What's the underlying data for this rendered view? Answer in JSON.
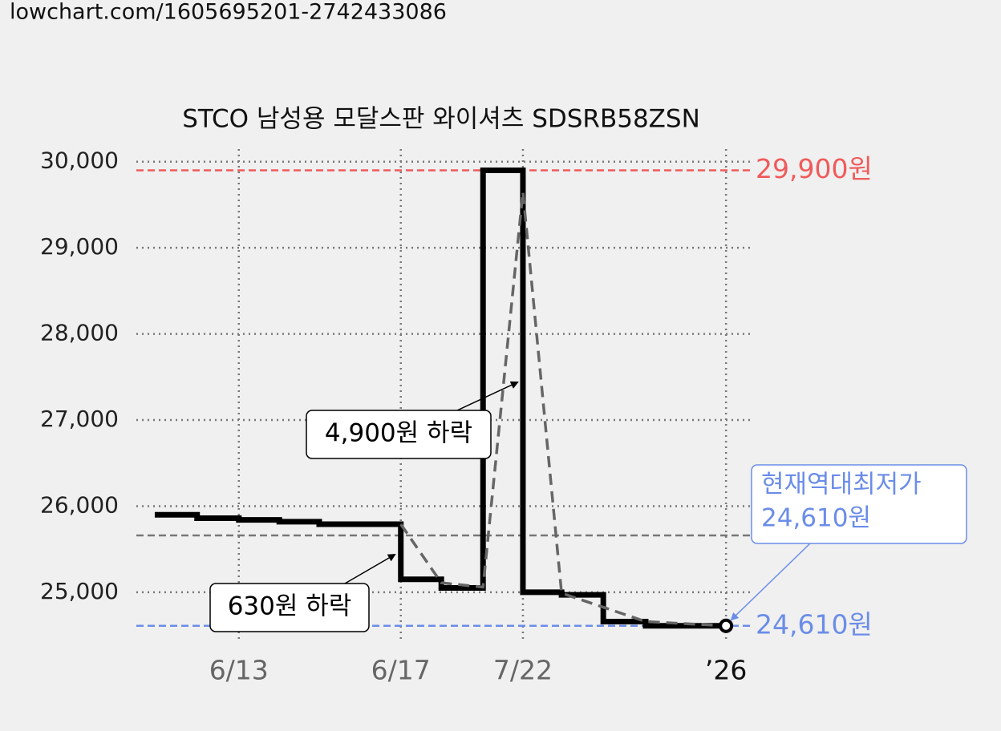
{
  "site": "lowchart.com/1605695201-2742433086",
  "chart_data": {
    "type": "step",
    "title": "STCO 남성용 모달스판 와이셔츠 SDSRB58ZSN",
    "xlim": [
      0,
      100
    ],
    "xticks": [
      {
        "value": 16.7,
        "label": "6/13"
      },
      {
        "value": 43.1,
        "label": "6/17"
      },
      {
        "value": 63.0,
        "label": "7/22"
      },
      {
        "value": 96.1,
        "label": "’26"
      }
    ],
    "ylim": [
      24450,
      30100
    ],
    "yticks": [
      {
        "value": 25000,
        "label": "25,000"
      },
      {
        "value": 26000,
        "label": "26,000"
      },
      {
        "value": 27000,
        "label": "27,000"
      },
      {
        "value": 28000,
        "label": "28,000"
      },
      {
        "value": 29000,
        "label": "29,000"
      },
      {
        "value": 30000,
        "label": "30,000"
      }
    ],
    "grid": true,
    "series": [
      {
        "color": "#000000",
        "style": "step",
        "x": [
          3.0,
          9.9,
          16.7,
          23.3,
          29.8,
          43.1,
          49.7,
          56.5,
          63.0,
          69.3,
          76.1,
          83.0,
          96.1
        ],
        "values": [
          25900,
          25860,
          25840,
          25820,
          25790,
          25150,
          25050,
          29900,
          25000,
          24970,
          24660,
          24610,
          24610
        ]
      },
      {
        "color": "#666666",
        "style": "dashed",
        "x": [
          43.1,
          49.7,
          56.5,
          63.0,
          69.3,
          83.0,
          96.1
        ],
        "values": [
          25790,
          25110,
          25060,
          29650,
          24990,
          24660,
          24610
        ]
      }
    ],
    "reference_lines": [
      {
        "value": 29900,
        "label": "29,900원",
        "color": "#f05a5a"
      },
      {
        "value": 24610,
        "label": "24,610원",
        "color": "#6b8de8"
      },
      {
        "value": 25660,
        "color": "#777777"
      }
    ],
    "annotations": [
      {
        "text": "4,900원 하락"
      },
      {
        "text": "630원 하락"
      },
      {
        "lines": [
          "현재역대최저가",
          "24,610원"
        ],
        "color": "#6b8de8"
      }
    ]
  }
}
